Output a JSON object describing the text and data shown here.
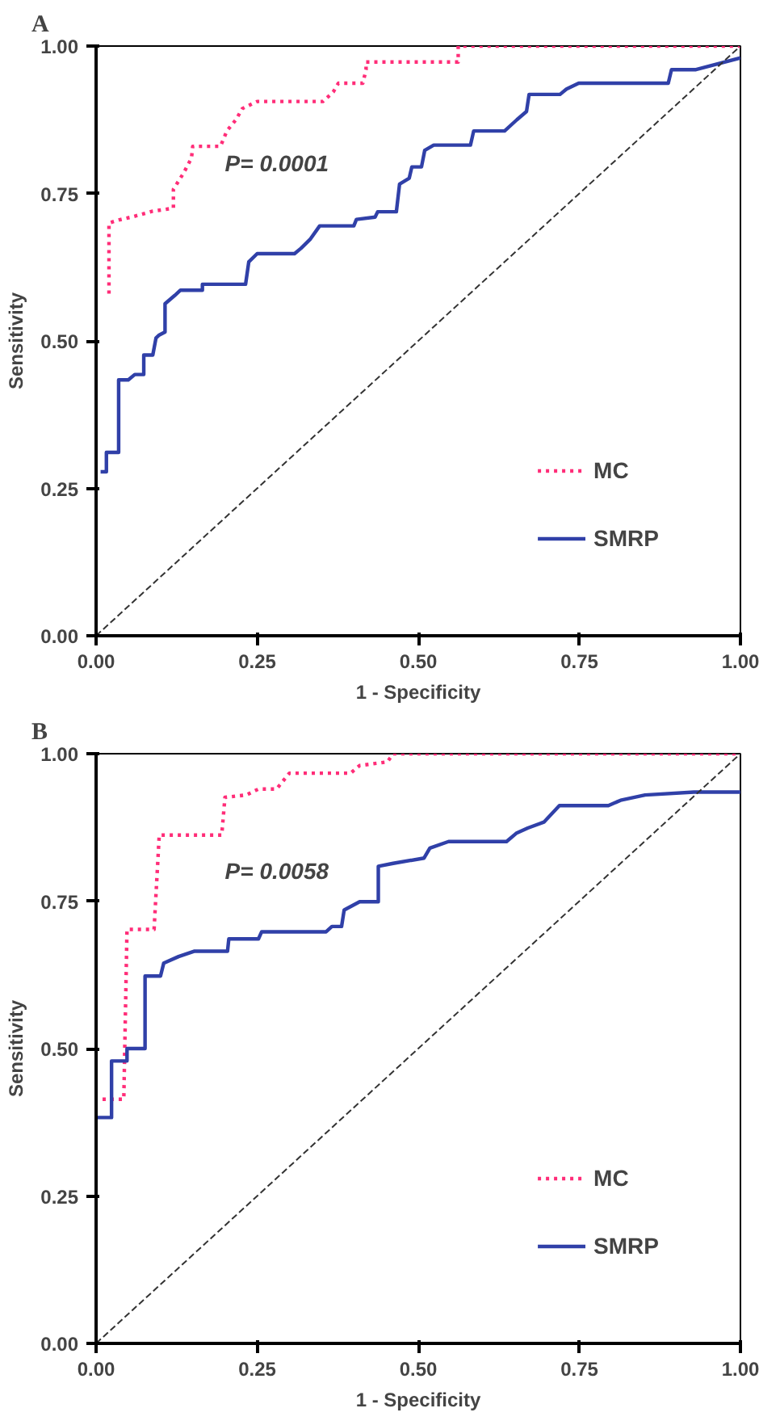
{
  "chart_data": [
    {
      "type": "line",
      "title": "A",
      "xlabel": "1 - Specificity",
      "ylabel": "Sensitivity",
      "annotations": [
        "P= 0.0001"
      ],
      "xlim": [
        0,
        1
      ],
      "ylim": [
        0,
        1
      ],
      "xticks": [
        {
          "value": 0,
          "label": "0.00"
        },
        {
          "value": 0.25,
          "label": "0.25"
        },
        {
          "value": 0.5,
          "label": "0.50"
        },
        {
          "value": 0.75,
          "label": "0.75"
        },
        {
          "value": 1,
          "label": "1.00"
        }
      ],
      "yticks": [
        {
          "value": 0,
          "label": "0.00"
        },
        {
          "value": 0.25,
          "label": "0.25"
        },
        {
          "value": 0.5,
          "label": "0.50"
        },
        {
          "value": 0.75,
          "label": "0.75"
        },
        {
          "value": 1,
          "label": "1.00"
        }
      ],
      "grid": false,
      "legend": "bottom right",
      "series": [
        {
          "name": "MC",
          "color": "#ff2d78",
          "line_style": "dotted",
          "x": [
            0.02,
            0.02,
            0.035,
            0.055,
            0.088,
            0.12,
            0.12,
            0.136,
            0.148,
            0.15,
            0.193,
            0.203,
            0.217,
            0.227,
            0.25,
            0.352,
            0.368,
            0.376,
            0.414,
            0.419,
            0.419,
            0.562,
            0.562,
            1.0
          ],
          "values": [
            0.58,
            0.7,
            0.705,
            0.71,
            0.72,
            0.725,
            0.757,
            0.785,
            0.81,
            0.83,
            0.83,
            0.856,
            0.875,
            0.894,
            0.906,
            0.906,
            0.922,
            0.937,
            0.937,
            0.96,
            0.973,
            0.973,
            1.0,
            1.0
          ]
        },
        {
          "name": "SMRP",
          "color": "#3040a8",
          "line_style": "solid",
          "x": [
            0.007,
            0.016,
            0.016,
            0.035,
            0.035,
            0.05,
            0.06,
            0.074,
            0.074,
            0.088,
            0.093,
            0.098,
            0.107,
            0.107,
            0.122,
            0.131,
            0.165,
            0.165,
            0.232,
            0.237,
            0.25,
            0.308,
            0.318,
            0.332,
            0.347,
            0.4,
            0.404,
            0.433,
            0.437,
            0.466,
            0.471,
            0.486,
            0.49,
            0.505,
            0.51,
            0.524,
            0.581,
            0.586,
            0.634,
            0.653,
            0.668,
            0.672,
            0.72,
            0.73,
            0.749,
            0.888,
            0.893,
            0.931,
            1.0
          ],
          "values": [
            0.278,
            0.278,
            0.311,
            0.311,
            0.434,
            0.434,
            0.443,
            0.443,
            0.476,
            0.476,
            0.505,
            0.51,
            0.515,
            0.563,
            0.577,
            0.586,
            0.586,
            0.596,
            0.596,
            0.634,
            0.648,
            0.648,
            0.657,
            0.672,
            0.695,
            0.695,
            0.706,
            0.71,
            0.719,
            0.719,
            0.766,
            0.776,
            0.795,
            0.795,
            0.823,
            0.832,
            0.832,
            0.856,
            0.856,
            0.875,
            0.889,
            0.918,
            0.918,
            0.927,
            0.937,
            0.937,
            0.96,
            0.96,
            0.98
          ]
        },
        {
          "color": "#333333",
          "line_style": "dashed",
          "x": [
            0,
            1
          ],
          "values": [
            0,
            1
          ]
        }
      ]
    },
    {
      "type": "line",
      "title": "B",
      "xlabel": "1 - Specificity",
      "ylabel": "Sensitivity",
      "annotations": [
        "P= 0.0058"
      ],
      "xlim": [
        0,
        1
      ],
      "ylim": [
        0,
        1
      ],
      "xticks": [
        {
          "value": 0,
          "label": "0.00"
        },
        {
          "value": 0.25,
          "label": "0.25"
        },
        {
          "value": 0.5,
          "label": "0.50"
        },
        {
          "value": 0.75,
          "label": "0.75"
        },
        {
          "value": 1,
          "label": "1.00"
        }
      ],
      "yticks": [
        {
          "value": 0,
          "label": "0.00"
        },
        {
          "value": 0.25,
          "label": "0.25"
        },
        {
          "value": 0.5,
          "label": "0.50"
        },
        {
          "value": 0.75,
          "label": "0.75"
        },
        {
          "value": 1,
          "label": "1.00"
        }
      ],
      "grid": false,
      "legend": "bottom right",
      "series": [
        {
          "name": "MC",
          "color": "#ff2d78",
          "line_style": "dotted",
          "x": [
            0.01,
            0.043,
            0.048,
            0.09,
            0.098,
            0.195,
            0.2,
            0.233,
            0.252,
            0.28,
            0.3,
            0.395,
            0.409,
            0.452,
            0.461,
            1.0
          ],
          "values": [
            0.414,
            0.414,
            0.702,
            0.702,
            0.862,
            0.862,
            0.926,
            0.93,
            0.94,
            0.94,
            0.967,
            0.967,
            0.98,
            0.986,
            1.0,
            1.0
          ]
        },
        {
          "name": "SMRP",
          "color": "#3040a8",
          "line_style": "solid",
          "x": [
            0,
            0.024,
            0.024,
            0.048,
            0.048,
            0.076,
            0.076,
            0.1,
            0.105,
            0.128,
            0.152,
            0.204,
            0.206,
            0.252,
            0.257,
            0.357,
            0.366,
            0.381,
            0.385,
            0.409,
            0.438,
            0.438,
            0.461,
            0.509,
            0.518,
            0.547,
            0.637,
            0.652,
            0.67,
            0.695,
            0.719,
            0.795,
            0.814,
            0.852,
            0.928,
            1.0
          ],
          "values": [
            0.383,
            0.383,
            0.479,
            0.479,
            0.5,
            0.5,
            0.623,
            0.623,
            0.645,
            0.656,
            0.665,
            0.665,
            0.686,
            0.686,
            0.698,
            0.698,
            0.707,
            0.707,
            0.735,
            0.749,
            0.749,
            0.809,
            0.814,
            0.823,
            0.84,
            0.851,
            0.851,
            0.865,
            0.874,
            0.884,
            0.912,
            0.912,
            0.921,
            0.93,
            0.935,
            0.935
          ]
        },
        {
          "color": "#333333",
          "line_style": "dashed",
          "x": [
            0,
            1
          ],
          "values": [
            0,
            1
          ]
        }
      ]
    }
  ]
}
